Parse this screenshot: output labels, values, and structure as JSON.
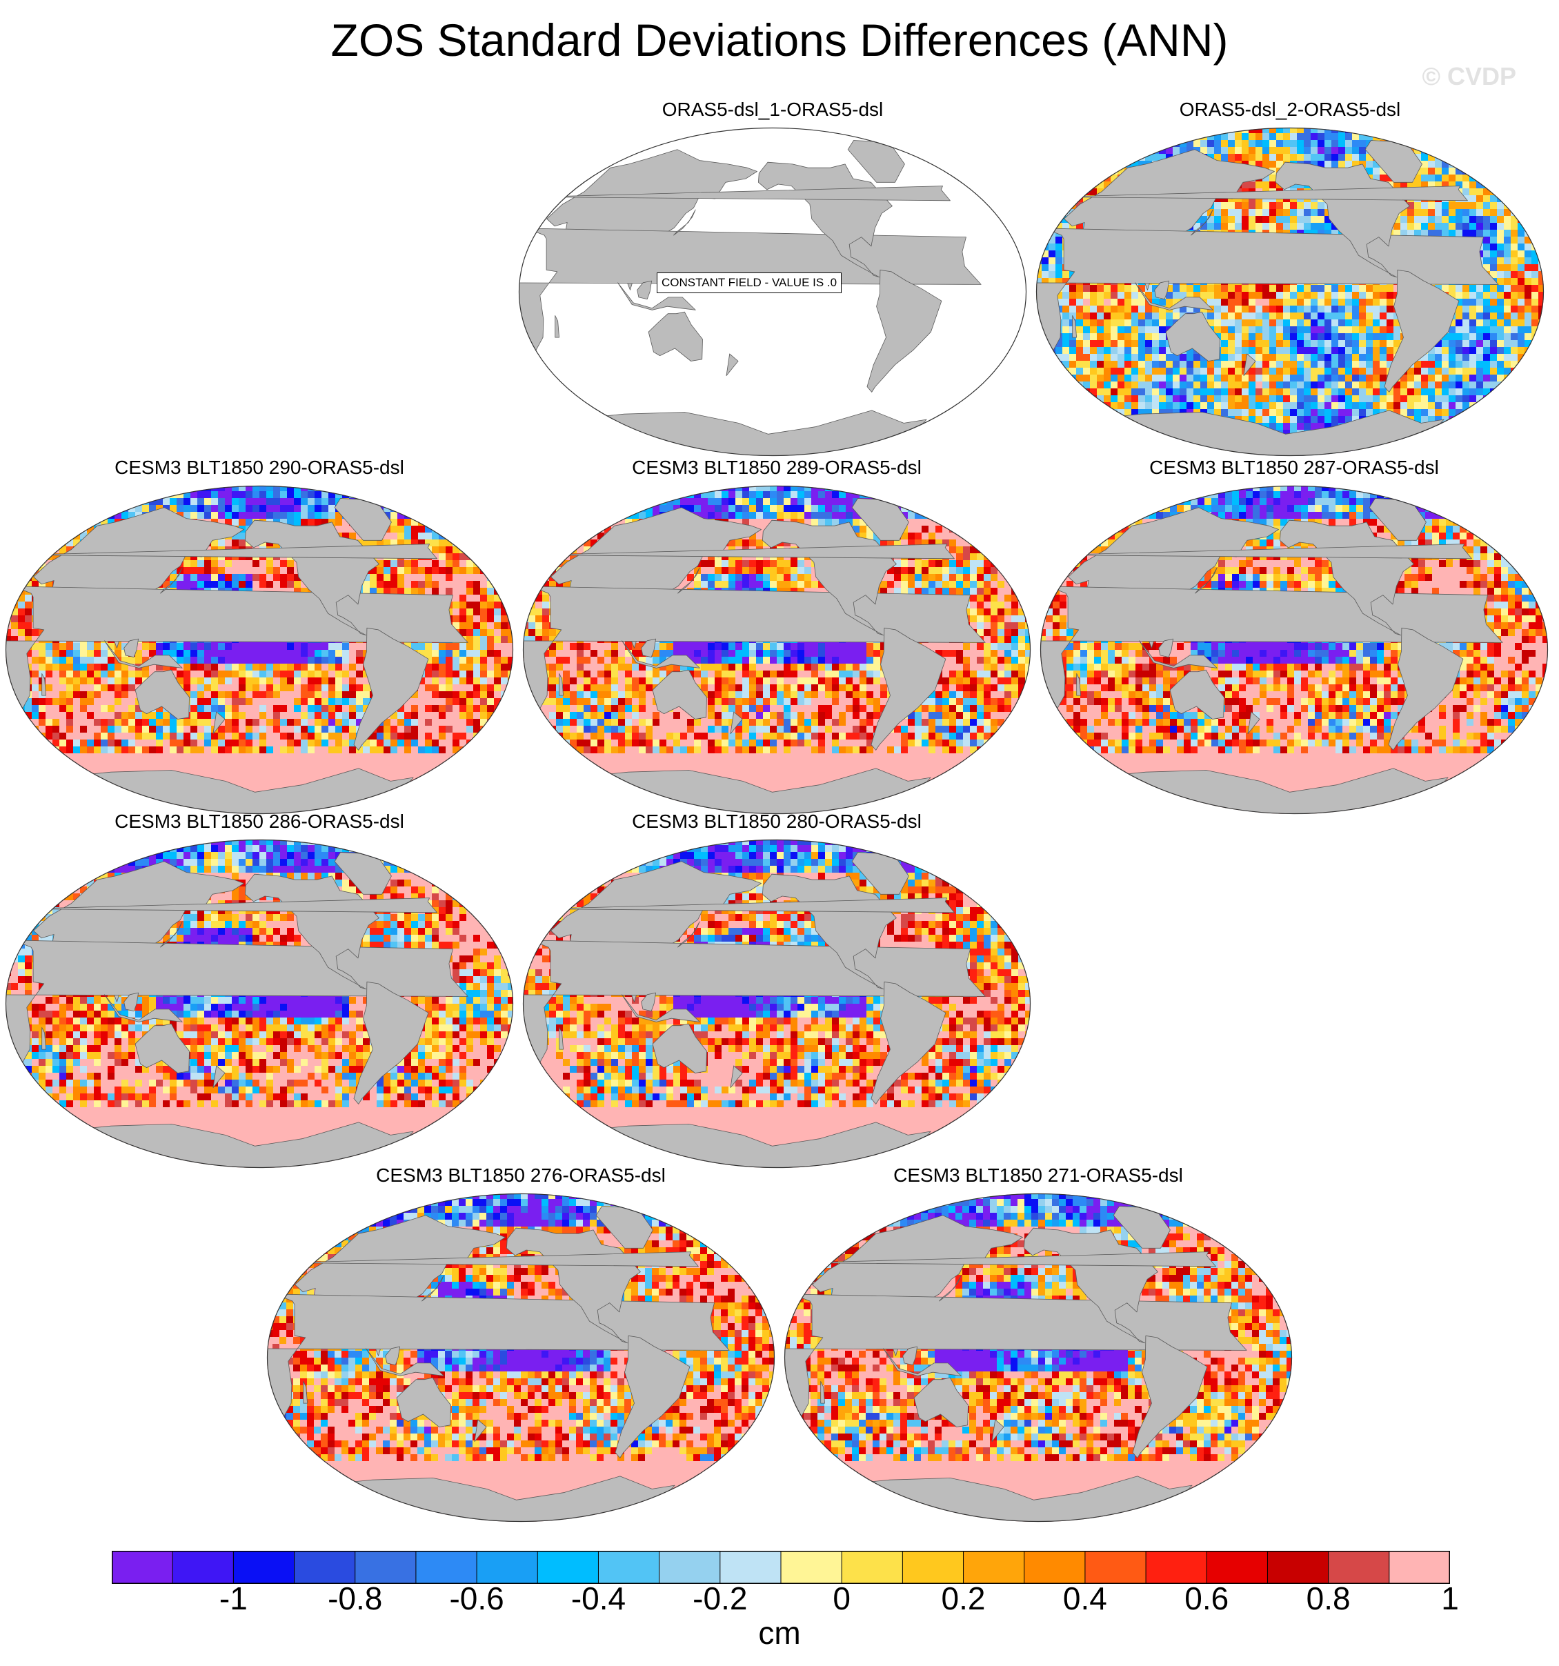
{
  "title": "ZOS Standard Deviations Differences (ANN)",
  "watermark": "© CVDP",
  "panels": [
    {
      "id": "p1",
      "title": "ORAS5-dsl_1-ORAS5-dsl",
      "constant_field": true,
      "note": "CONSTANT FIELD - VALUE IS .0"
    },
    {
      "id": "p2",
      "title": "ORAS5-dsl_2-ORAS5-dsl",
      "constant_field": false
    },
    {
      "id": "p3",
      "title": "CESM3 BLT1850 290-ORAS5-dsl",
      "constant_field": false
    },
    {
      "id": "p4",
      "title": "CESM3 BLT1850 289-ORAS5-dsl",
      "constant_field": false
    },
    {
      "id": "p5",
      "title": "CESM3 BLT1850 287-ORAS5-dsl",
      "constant_field": false
    },
    {
      "id": "p6",
      "title": "CESM3 BLT1850 286-ORAS5-dsl",
      "constant_field": false
    },
    {
      "id": "p7",
      "title": "CESM3 BLT1850 280-ORAS5-dsl",
      "constant_field": false
    },
    {
      "id": "p8",
      "title": "CESM3 BLT1850 276-ORAS5-dsl",
      "constant_field": false
    },
    {
      "id": "p9",
      "title": "CESM3 BLT1850 271-ORAS5-dsl",
      "constant_field": false
    }
  ],
  "colorbar": {
    "units": "cm",
    "tick_labels": [
      "-1",
      "-0.8",
      "-0.6",
      "-0.4",
      "-0.2",
      "0",
      "0.2",
      "0.4",
      "0.6",
      "0.8",
      "1"
    ],
    "colors": [
      "#7a1ff0",
      "#3f16f5",
      "#0a10f5",
      "#2a4be0",
      "#3871e3",
      "#2d8af5",
      "#199ff5",
      "#00bdff",
      "#52c4f5",
      "#95d1ef",
      "#bfe3f5",
      "#fff596",
      "#fde14a",
      "#ffc81e",
      "#ffa50a",
      "#ff8a00",
      "#ff5a14",
      "#ff2010",
      "#e60000",
      "#c80000",
      "#d64848",
      "#ffb4b4"
    ]
  }
}
